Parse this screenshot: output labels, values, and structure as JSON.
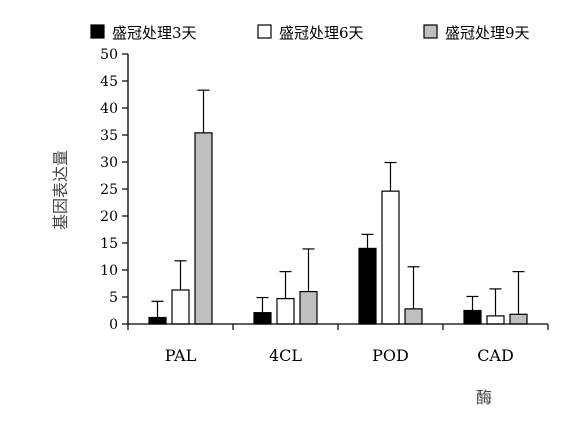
{
  "chart_data": {
    "type": "bar",
    "categories": [
      "PAL",
      "4CL",
      "POD",
      "CAD"
    ],
    "series": [
      {
        "name": "盛冠处理3天",
        "values": [
          1.2,
          2.1,
          14.0,
          2.5
        ],
        "errors": [
          3.0,
          2.8,
          2.6,
          2.6
        ],
        "color": "#000000"
      },
      {
        "name": "盛冠处理6天",
        "values": [
          6.3,
          4.7,
          24.6,
          1.5
        ],
        "errors": [
          5.4,
          5.0,
          5.3,
          5.0
        ],
        "color": "#ffffff"
      },
      {
        "name": "盛冠处理9天",
        "values": [
          35.4,
          6.0,
          2.8,
          1.8
        ],
        "errors": [
          7.9,
          7.9,
          7.8,
          7.9
        ],
        "color": "#bfbfbf"
      }
    ],
    "xlabel": "酶",
    "ylabel": "基因表达量",
    "ylim": [
      0,
      50
    ],
    "yticks": [
      0,
      5,
      10,
      15,
      20,
      25,
      30,
      35,
      40,
      45,
      50
    ],
    "grid": false,
    "legend_position": "top"
  }
}
